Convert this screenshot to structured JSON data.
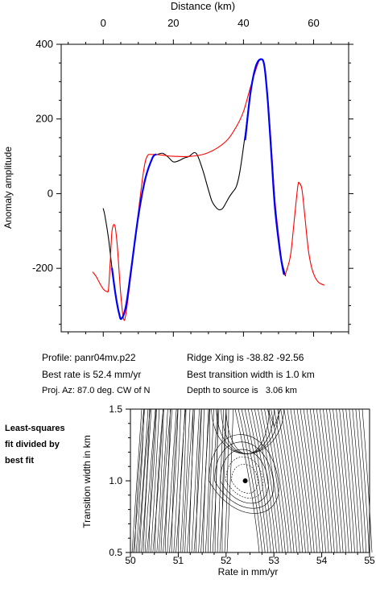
{
  "colors": {
    "data": "#000000",
    "model": "#ff0000",
    "fit": "#0000ff"
  },
  "info": {
    "profile": "Profile: panr04mv.p22",
    "best_rate": "Best rate is 52.4 mm/yr",
    "proj_az": "Proj. Az: 87.0 deg. CW of N",
    "ridge_xing": "Ridge Xing is -38.82 -92.56",
    "transition": "Best transition width is 1.0 km",
    "depth": "Depth to source is   3.06 km"
  },
  "side_note": [
    "Least-squares",
    "fit divided by",
    "best fit"
  ],
  "chart_data": [
    {
      "type": "line",
      "title": "",
      "xlabel": "Distance (km)",
      "ylabel": "Anomaly amplitude",
      "xlim": [
        -12,
        70
      ],
      "ylim": [
        -370,
        400
      ],
      "x_ticks": [
        0,
        20,
        40,
        60
      ],
      "y_ticks": [
        -200,
        0,
        200,
        400
      ],
      "y_tick_labels": [
        "-200",
        "0",
        "200",
        "400"
      ],
      "x_axis_position": "top",
      "series": [
        {
          "key": "data",
          "points": [
            [
              0.0,
              -40
            ],
            [
              0.5,
              -60
            ],
            [
              1.5,
              -120
            ],
            [
              2.5,
              -200
            ],
            [
              3.5,
              -270
            ],
            [
              4.5,
              -320
            ],
            [
              5.2,
              -335
            ],
            [
              6.5,
              -300
            ],
            [
              8,
              -200
            ],
            [
              10,
              -60
            ],
            [
              12,
              40
            ],
            [
              14,
              95
            ],
            [
              15.5,
              105
            ],
            [
              17,
              108
            ],
            [
              18.5,
              98
            ],
            [
              20,
              85
            ],
            [
              21.5,
              88
            ],
            [
              23,
              95
            ],
            [
              24.5,
              100
            ],
            [
              26,
              110
            ],
            [
              27,
              100
            ],
            [
              28.5,
              60
            ],
            [
              30,
              10
            ],
            [
              31,
              -20
            ],
            [
              32,
              -35
            ],
            [
              33,
              -43
            ],
            [
              34,
              -40
            ],
            [
              35,
              -25
            ],
            [
              36,
              -8
            ],
            [
              37,
              5
            ],
            [
              38,
              20
            ],
            [
              39,
              60
            ],
            [
              40.5,
              160
            ],
            [
              42,
              270
            ],
            [
              43.5,
              340
            ],
            [
              45,
              360
            ],
            [
              46,
              340
            ],
            [
              47,
              240
            ],
            [
              48,
              100
            ],
            [
              49,
              -40
            ],
            [
              50.5,
              -160
            ],
            [
              52,
              -220
            ]
          ]
        },
        {
          "key": "model",
          "points": [
            [
              -3,
              -210
            ],
            [
              -2,
              -222
            ],
            [
              -1,
              -240
            ],
            [
              0,
              -255
            ],
            [
              1,
              -262
            ],
            [
              1.5,
              -255
            ],
            [
              2,
              -180
            ],
            [
              2.5,
              -100
            ],
            [
              3.3,
              -85
            ],
            [
              4,
              -140
            ],
            [
              5,
              -270
            ],
            [
              5.8,
              -335
            ],
            [
              6.5,
              -320
            ],
            [
              8,
              -210
            ],
            [
              10,
              -50
            ],
            [
              11.5,
              60
            ],
            [
              12.5,
              100
            ],
            [
              14,
              105
            ],
            [
              17,
              103
            ],
            [
              20,
              100
            ],
            [
              25,
              100
            ],
            [
              30,
              110
            ],
            [
              35,
              140
            ],
            [
              38,
              180
            ],
            [
              40,
              220
            ],
            [
              42,
              285
            ],
            [
              44,
              345
            ],
            [
              45,
              360
            ],
            [
              46,
              340
            ],
            [
              47,
              250
            ],
            [
              48,
              120
            ],
            [
              49,
              -20
            ],
            [
              50.5,
              -150
            ],
            [
              51.5,
              -215
            ],
            [
              52.5,
              -200
            ],
            [
              53.5,
              -160
            ],
            [
              54.5,
              -70
            ],
            [
              55.5,
              20
            ],
            [
              56,
              28
            ],
            [
              56.7,
              10
            ],
            [
              57.5,
              -60
            ],
            [
              58.5,
              -150
            ],
            [
              59.5,
              -200
            ],
            [
              60.5,
              -225
            ],
            [
              61.5,
              -238
            ],
            [
              63,
              -245
            ]
          ]
        },
        {
          "key": "fit",
          "points": [
            [
              2.5,
              -200
            ],
            [
              3.5,
              -270
            ],
            [
              4.5,
              -320
            ],
            [
              5.2,
              -335
            ],
            [
              6.5,
              -300
            ],
            [
              8,
              -200
            ],
            [
              10,
              -60
            ],
            [
              12,
              40
            ],
            [
              14,
              95
            ],
            [
              15,
              105
            ]
          ]
        },
        {
          "key": "fit",
          "points": [
            [
              40.5,
              145
            ],
            [
              42,
              270
            ],
            [
              43.5,
              340
            ],
            [
              45,
              360
            ],
            [
              46,
              340
            ],
            [
              47,
              240
            ],
            [
              48,
              100
            ],
            [
              49,
              -40
            ],
            [
              50.5,
              -160
            ],
            [
              51.5,
              -215
            ]
          ]
        }
      ]
    },
    {
      "type": "contour",
      "title": "",
      "xlabel": "Rate in mm/yr",
      "ylabel": "Transition width in km",
      "xlim": [
        50,
        55
      ],
      "ylim": [
        0.5,
        1.5
      ],
      "x_ticks": [
        50,
        51,
        52,
        53,
        54,
        55
      ],
      "y_ticks": [
        0.5,
        1.0,
        1.5
      ],
      "x_tick_labels": [
        "50",
        "51",
        "52",
        "53",
        "54",
        "55"
      ],
      "y_tick_labels": [
        "0.5",
        "1.0",
        "1.5"
      ],
      "best_fit_point": {
        "x": 52.4,
        "y": 1.0
      }
    }
  ]
}
